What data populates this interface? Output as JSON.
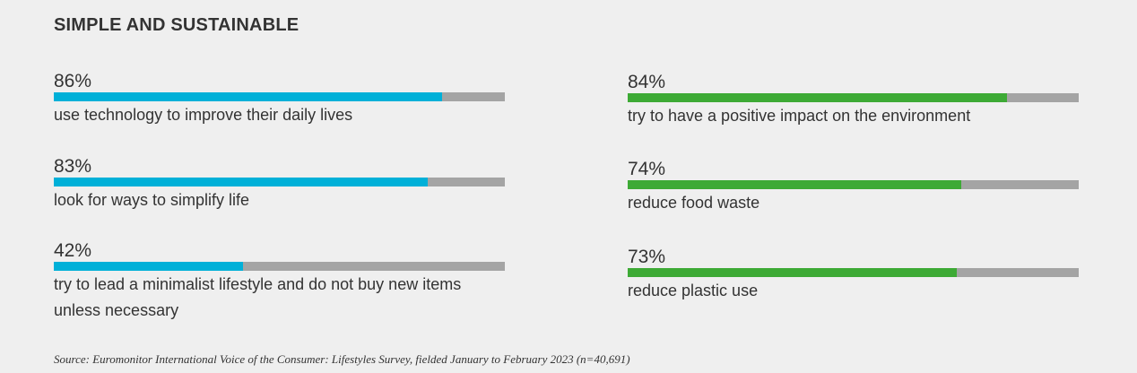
{
  "title": "SIMPLE AND SUSTAINABLE",
  "colors": {
    "background": "#efefef",
    "left_fill": "#00b0d8",
    "right_fill": "#3daa35",
    "bar_track": "#a4a4a4",
    "text": "#333333"
  },
  "chart_data": [
    {
      "type": "bar",
      "orientation": "horizontal",
      "color": "#00b0d8",
      "xlim": [
        0,
        100
      ],
      "items": [
        {
          "label": "86%",
          "value": 86,
          "description": "use technology to improve their daily lives"
        },
        {
          "label": "83%",
          "value": 83,
          "description": "look for ways to simplify life"
        },
        {
          "label": "42%",
          "value": 42,
          "description": "try to lead a minimalist lifestyle and do not buy new items unless necessary"
        }
      ]
    },
    {
      "type": "bar",
      "orientation": "horizontal",
      "color": "#3daa35",
      "xlim": [
        0,
        100
      ],
      "items": [
        {
          "label": "84%",
          "value": 84,
          "description": "try to have a positive impact on the environment"
        },
        {
          "label": "74%",
          "value": 74,
          "description": "reduce food waste"
        },
        {
          "label": "73%",
          "value": 73,
          "description": "reduce plastic use"
        }
      ]
    }
  ],
  "source": "Source: Euromonitor International Voice of the Consumer: Lifestyles Survey, fielded January to February 2023 (n=40,691)"
}
